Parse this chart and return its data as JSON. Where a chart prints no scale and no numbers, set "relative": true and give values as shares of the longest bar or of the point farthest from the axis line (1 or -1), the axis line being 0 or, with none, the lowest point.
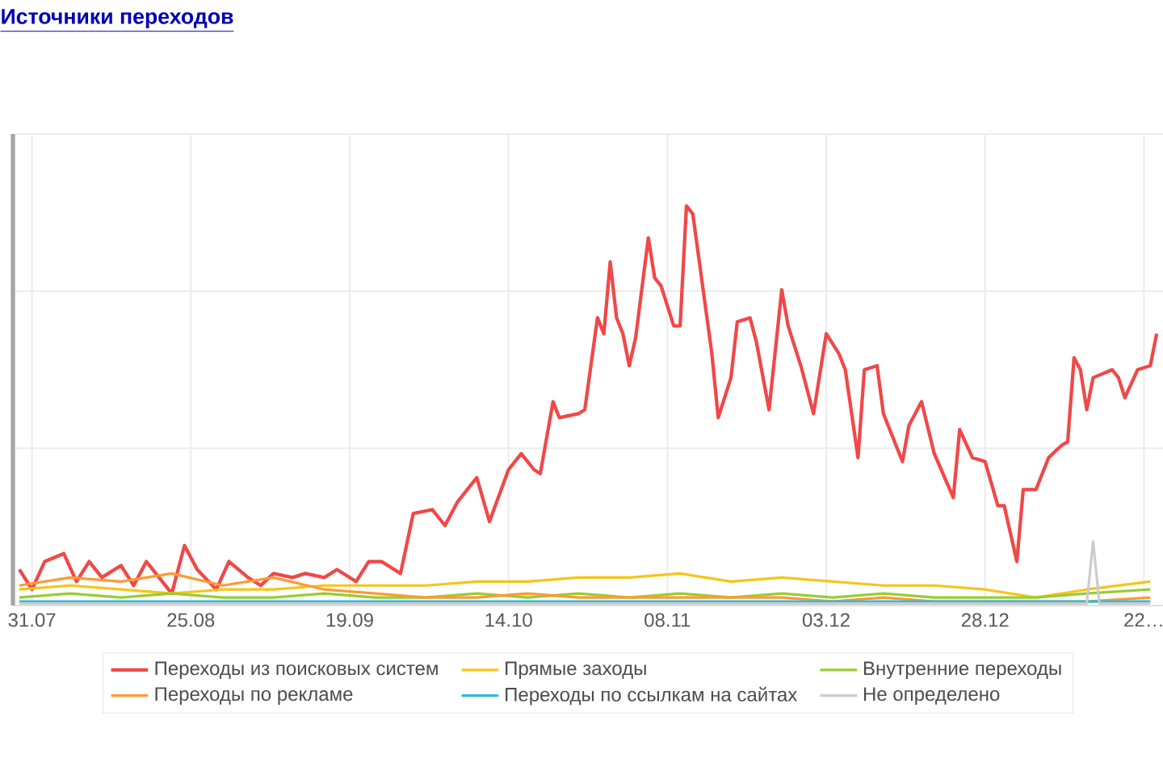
{
  "chart_data": {
    "type": "line",
    "title": "Источники переходов",
    "relative": true,
    "grid": true,
    "legend": "bottom",
    "marker": "none",
    "line_style": "solid",
    "xlim": [
      "2012-07-28",
      "2013-01-25"
    ],
    "xticks": [
      {
        "value": "2012-07-31",
        "label": "31.07"
      },
      {
        "value": "2012-08-25",
        "label": "25.08"
      },
      {
        "value": "2012-09-19",
        "label": "19.09"
      },
      {
        "value": "2012-10-14",
        "label": "14.10"
      },
      {
        "value": "2012-11-08",
        "label": "08.11"
      },
      {
        "value": "2012-12-03",
        "label": "03.12"
      },
      {
        "value": "2012-12-28",
        "label": "28.12"
      },
      {
        "value": "2013-01-22",
        "label": "22…"
      }
    ],
    "series": [
      {
        "name": "Переходы из поисковых систем",
        "color": "#f04848",
        "x": [
          "2012-07-29",
          "2012-07-31",
          "2012-08-02",
          "2012-08-05",
          "2012-08-07",
          "2012-08-09",
          "2012-08-11",
          "2012-08-14",
          "2012-08-16",
          "2012-08-18",
          "2012-08-20",
          "2012-08-22",
          "2012-08-24",
          "2012-08-26",
          "2012-08-29",
          "2012-08-31",
          "2012-09-03",
          "2012-09-05",
          "2012-09-07",
          "2012-09-10",
          "2012-09-12",
          "2012-09-15",
          "2012-09-17",
          "2012-09-20",
          "2012-09-22",
          "2012-09-24",
          "2012-09-27",
          "2012-09-29",
          "2012-10-02",
          "2012-10-04",
          "2012-10-06",
          "2012-10-09",
          "2012-10-11",
          "2012-10-14",
          "2012-10-16",
          "2012-10-18",
          "2012-10-19",
          "2012-10-21",
          "2012-10-22",
          "2012-10-25",
          "2012-10-26",
          "2012-10-28",
          "2012-10-29",
          "2012-10-30",
          "2012-10-31",
          "2012-11-01",
          "2012-11-02",
          "2012-11-03",
          "2012-11-05",
          "2012-11-06",
          "2012-11-07",
          "2012-11-09",
          "2012-11-10",
          "2012-11-11",
          "2012-11-12",
          "2012-11-15",
          "2012-11-16",
          "2012-11-18",
          "2012-11-19",
          "2012-11-21",
          "2012-11-22",
          "2012-11-24",
          "2012-11-26",
          "2012-11-27",
          "2012-11-29",
          "2012-12-01",
          "2012-12-03",
          "2012-12-05",
          "2012-12-06",
          "2012-12-08",
          "2012-12-09",
          "2012-12-11",
          "2012-12-12",
          "2012-12-15",
          "2012-12-16",
          "2012-12-18",
          "2012-12-20",
          "2012-12-23",
          "2012-12-24",
          "2012-12-26",
          "2012-12-28",
          "2012-12-30",
          "2012-12-31",
          "2013-01-02",
          "2013-01-03",
          "2013-01-05",
          "2013-01-07",
          "2013-01-09",
          "2013-01-10",
          "2013-01-11",
          "2013-01-12",
          "2013-01-13",
          "2013-01-14",
          "2013-01-17",
          "2013-01-18",
          "2013-01-19",
          "2013-01-21",
          "2013-01-23",
          "2013-01-24"
        ],
        "values": [
          0.09,
          0.04,
          0.11,
          0.13,
          0.06,
          0.11,
          0.07,
          0.1,
          0.05,
          0.11,
          0.07,
          0.03,
          0.15,
          0.09,
          0.04,
          0.11,
          0.07,
          0.05,
          0.08,
          0.07,
          0.08,
          0.07,
          0.09,
          0.06,
          0.11,
          0.11,
          0.08,
          0.23,
          0.24,
          0.2,
          0.26,
          0.32,
          0.21,
          0.34,
          0.38,
          0.34,
          0.33,
          0.51,
          0.47,
          0.48,
          0.49,
          0.72,
          0.68,
          0.86,
          0.72,
          0.68,
          0.6,
          0.67,
          0.92,
          0.82,
          0.8,
          0.7,
          0.7,
          1.0,
          0.98,
          0.63,
          0.47,
          0.57,
          0.71,
          0.72,
          0.66,
          0.49,
          0.79,
          0.7,
          0.6,
          0.48,
          0.68,
          0.63,
          0.59,
          0.37,
          0.59,
          0.6,
          0.48,
          0.36,
          0.45,
          0.51,
          0.38,
          0.27,
          0.44,
          0.37,
          0.36,
          0.25,
          0.25,
          0.11,
          0.29,
          0.29,
          0.37,
          0.4,
          0.41,
          0.62,
          0.59,
          0.49,
          0.57,
          0.59,
          0.57,
          0.52,
          0.59,
          0.6,
          0.68
        ]
      },
      {
        "name": "Прямые заходы",
        "color": "#f5c518",
        "x": [
          "2012-07-29",
          "2012-08-06",
          "2012-08-14",
          "2012-08-22",
          "2012-08-30",
          "2012-09-07",
          "2012-09-15",
          "2012-09-23",
          "2012-10-01",
          "2012-10-09",
          "2012-10-17",
          "2012-10-25",
          "2012-11-02",
          "2012-11-10",
          "2012-11-18",
          "2012-11-26",
          "2012-12-04",
          "2012-12-12",
          "2012-12-20",
          "2012-12-28",
          "2013-01-05",
          "2013-01-13",
          "2013-01-23"
        ],
        "values": [
          0.04,
          0.05,
          0.04,
          0.03,
          0.04,
          0.04,
          0.05,
          0.05,
          0.05,
          0.06,
          0.06,
          0.07,
          0.07,
          0.08,
          0.06,
          0.07,
          0.06,
          0.05,
          0.05,
          0.04,
          0.02,
          0.04,
          0.06
        ]
      },
      {
        "name": "Внутренние переходы",
        "color": "#99cc33",
        "x": [
          "2012-07-29",
          "2012-08-06",
          "2012-08-14",
          "2012-08-22",
          "2012-08-30",
          "2012-09-07",
          "2012-09-15",
          "2012-09-23",
          "2012-10-01",
          "2012-10-09",
          "2012-10-17",
          "2012-10-25",
          "2012-11-02",
          "2012-11-10",
          "2012-11-18",
          "2012-11-26",
          "2012-12-04",
          "2012-12-12",
          "2012-12-20",
          "2012-12-28",
          "2013-01-05",
          "2013-01-13",
          "2013-01-23"
        ],
        "values": [
          0.02,
          0.03,
          0.02,
          0.03,
          0.02,
          0.02,
          0.03,
          0.02,
          0.02,
          0.03,
          0.02,
          0.03,
          0.02,
          0.03,
          0.02,
          0.03,
          0.02,
          0.03,
          0.02,
          0.02,
          0.02,
          0.03,
          0.04
        ]
      },
      {
        "name": "Переходы по рекламе",
        "color": "#ff9933",
        "x": [
          "2012-07-29",
          "2012-08-06",
          "2012-08-14",
          "2012-08-22",
          "2012-08-30",
          "2012-09-07",
          "2012-09-15",
          "2012-09-23",
          "2012-10-01",
          "2012-10-09",
          "2012-10-17",
          "2012-10-25",
          "2012-11-02",
          "2012-11-10",
          "2012-11-18",
          "2012-11-26",
          "2012-12-04",
          "2012-12-12",
          "2012-12-20",
          "2012-12-28",
          "2013-01-05",
          "2013-01-13",
          "2013-01-23"
        ],
        "values": [
          0.05,
          0.07,
          0.06,
          0.08,
          0.05,
          0.07,
          0.04,
          0.03,
          0.02,
          0.02,
          0.03,
          0.02,
          0.02,
          0.02,
          0.02,
          0.02,
          0.01,
          0.02,
          0.01,
          0.01,
          0.01,
          0.01,
          0.02
        ]
      },
      {
        "name": "Переходы по ссылкам на сайтах",
        "color": "#33bbdd",
        "x": [
          "2012-07-29",
          "2012-08-20",
          "2012-09-09",
          "2012-09-29",
          "2012-10-19",
          "2012-11-08",
          "2012-11-28",
          "2012-12-18",
          "2013-01-07",
          "2013-01-23"
        ],
        "values": [
          0.01,
          0.01,
          0.01,
          0.01,
          0.01,
          0.01,
          0.01,
          0.01,
          0.01,
          0.01
        ]
      },
      {
        "name": "Не определено",
        "color": "#cccccc",
        "x": [
          "2012-07-29",
          "2012-09-09",
          "2012-10-19",
          "2012-11-28",
          "2013-01-07",
          "2013-01-13",
          "2013-01-14",
          "2013-01-15",
          "2013-01-23"
        ],
        "values": [
          0.005,
          0.005,
          0.005,
          0.005,
          0.005,
          0.005,
          0.16,
          0.005,
          0.005
        ]
      }
    ]
  }
}
